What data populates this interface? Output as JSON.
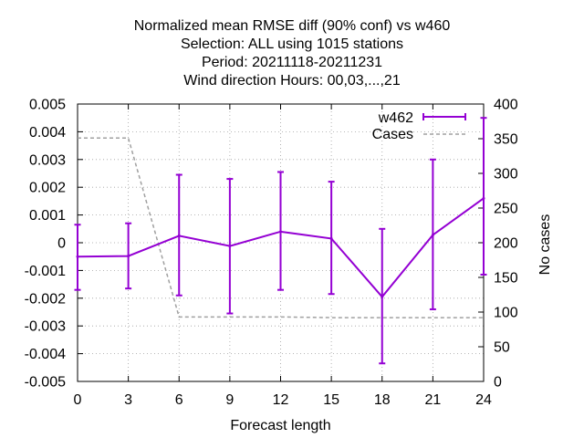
{
  "chart_data": {
    "type": "line",
    "title_lines": [
      "Normalized mean RMSE diff (90% conf) vs w460",
      "Selection: ALL using  1015 stations",
      "Period: 20211118-20211231",
      "Wind direction   Hours:  00,03,...,21"
    ],
    "xlabel": "Forecast length",
    "ylabel": "",
    "y2label": "No cases",
    "xlim": [
      0,
      24
    ],
    "ylim": [
      -0.005,
      0.005
    ],
    "y2lim": [
      0,
      400
    ],
    "x_ticks": [
      "0",
      "3",
      "6",
      "9",
      "12",
      "15",
      "18",
      "21",
      "24"
    ],
    "y_ticks": [
      "-0.005",
      "-0.004",
      "-0.003",
      "-0.002",
      "-0.001",
      "0",
      "0.001",
      "0.002",
      "0.003",
      "0.004",
      "0.005"
    ],
    "y2_ticks": [
      "0",
      "50",
      "100",
      "150",
      "200",
      "250",
      "300",
      "350",
      "400"
    ],
    "grid": true,
    "legend_position": "top-right",
    "x": [
      0,
      3,
      6,
      9,
      12,
      15,
      18,
      21,
      24
    ],
    "series": [
      {
        "name": "w462",
        "color": "#9400d3",
        "style": "line-errorbars",
        "axis": "left",
        "values": [
          -0.0005,
          -0.00048,
          0.00025,
          -0.00012,
          0.0004,
          0.00015,
          -0.00195,
          0.00028,
          0.0016
        ],
        "err_low": [
          -0.0017,
          -0.00165,
          -0.0019,
          -0.00255,
          -0.0017,
          -0.00185,
          -0.00435,
          -0.0024,
          -0.00115
        ],
        "err_high": [
          0.00065,
          0.0007,
          0.00245,
          0.0023,
          0.00255,
          0.0022,
          0.0005,
          0.003,
          0.0045
        ]
      },
      {
        "name": "Cases",
        "color": "#a0a0a0",
        "style": "dashed",
        "axis": "right",
        "values": [
          351,
          351,
          93,
          93,
          93,
          92,
          92,
          92,
          92
        ]
      }
    ]
  }
}
